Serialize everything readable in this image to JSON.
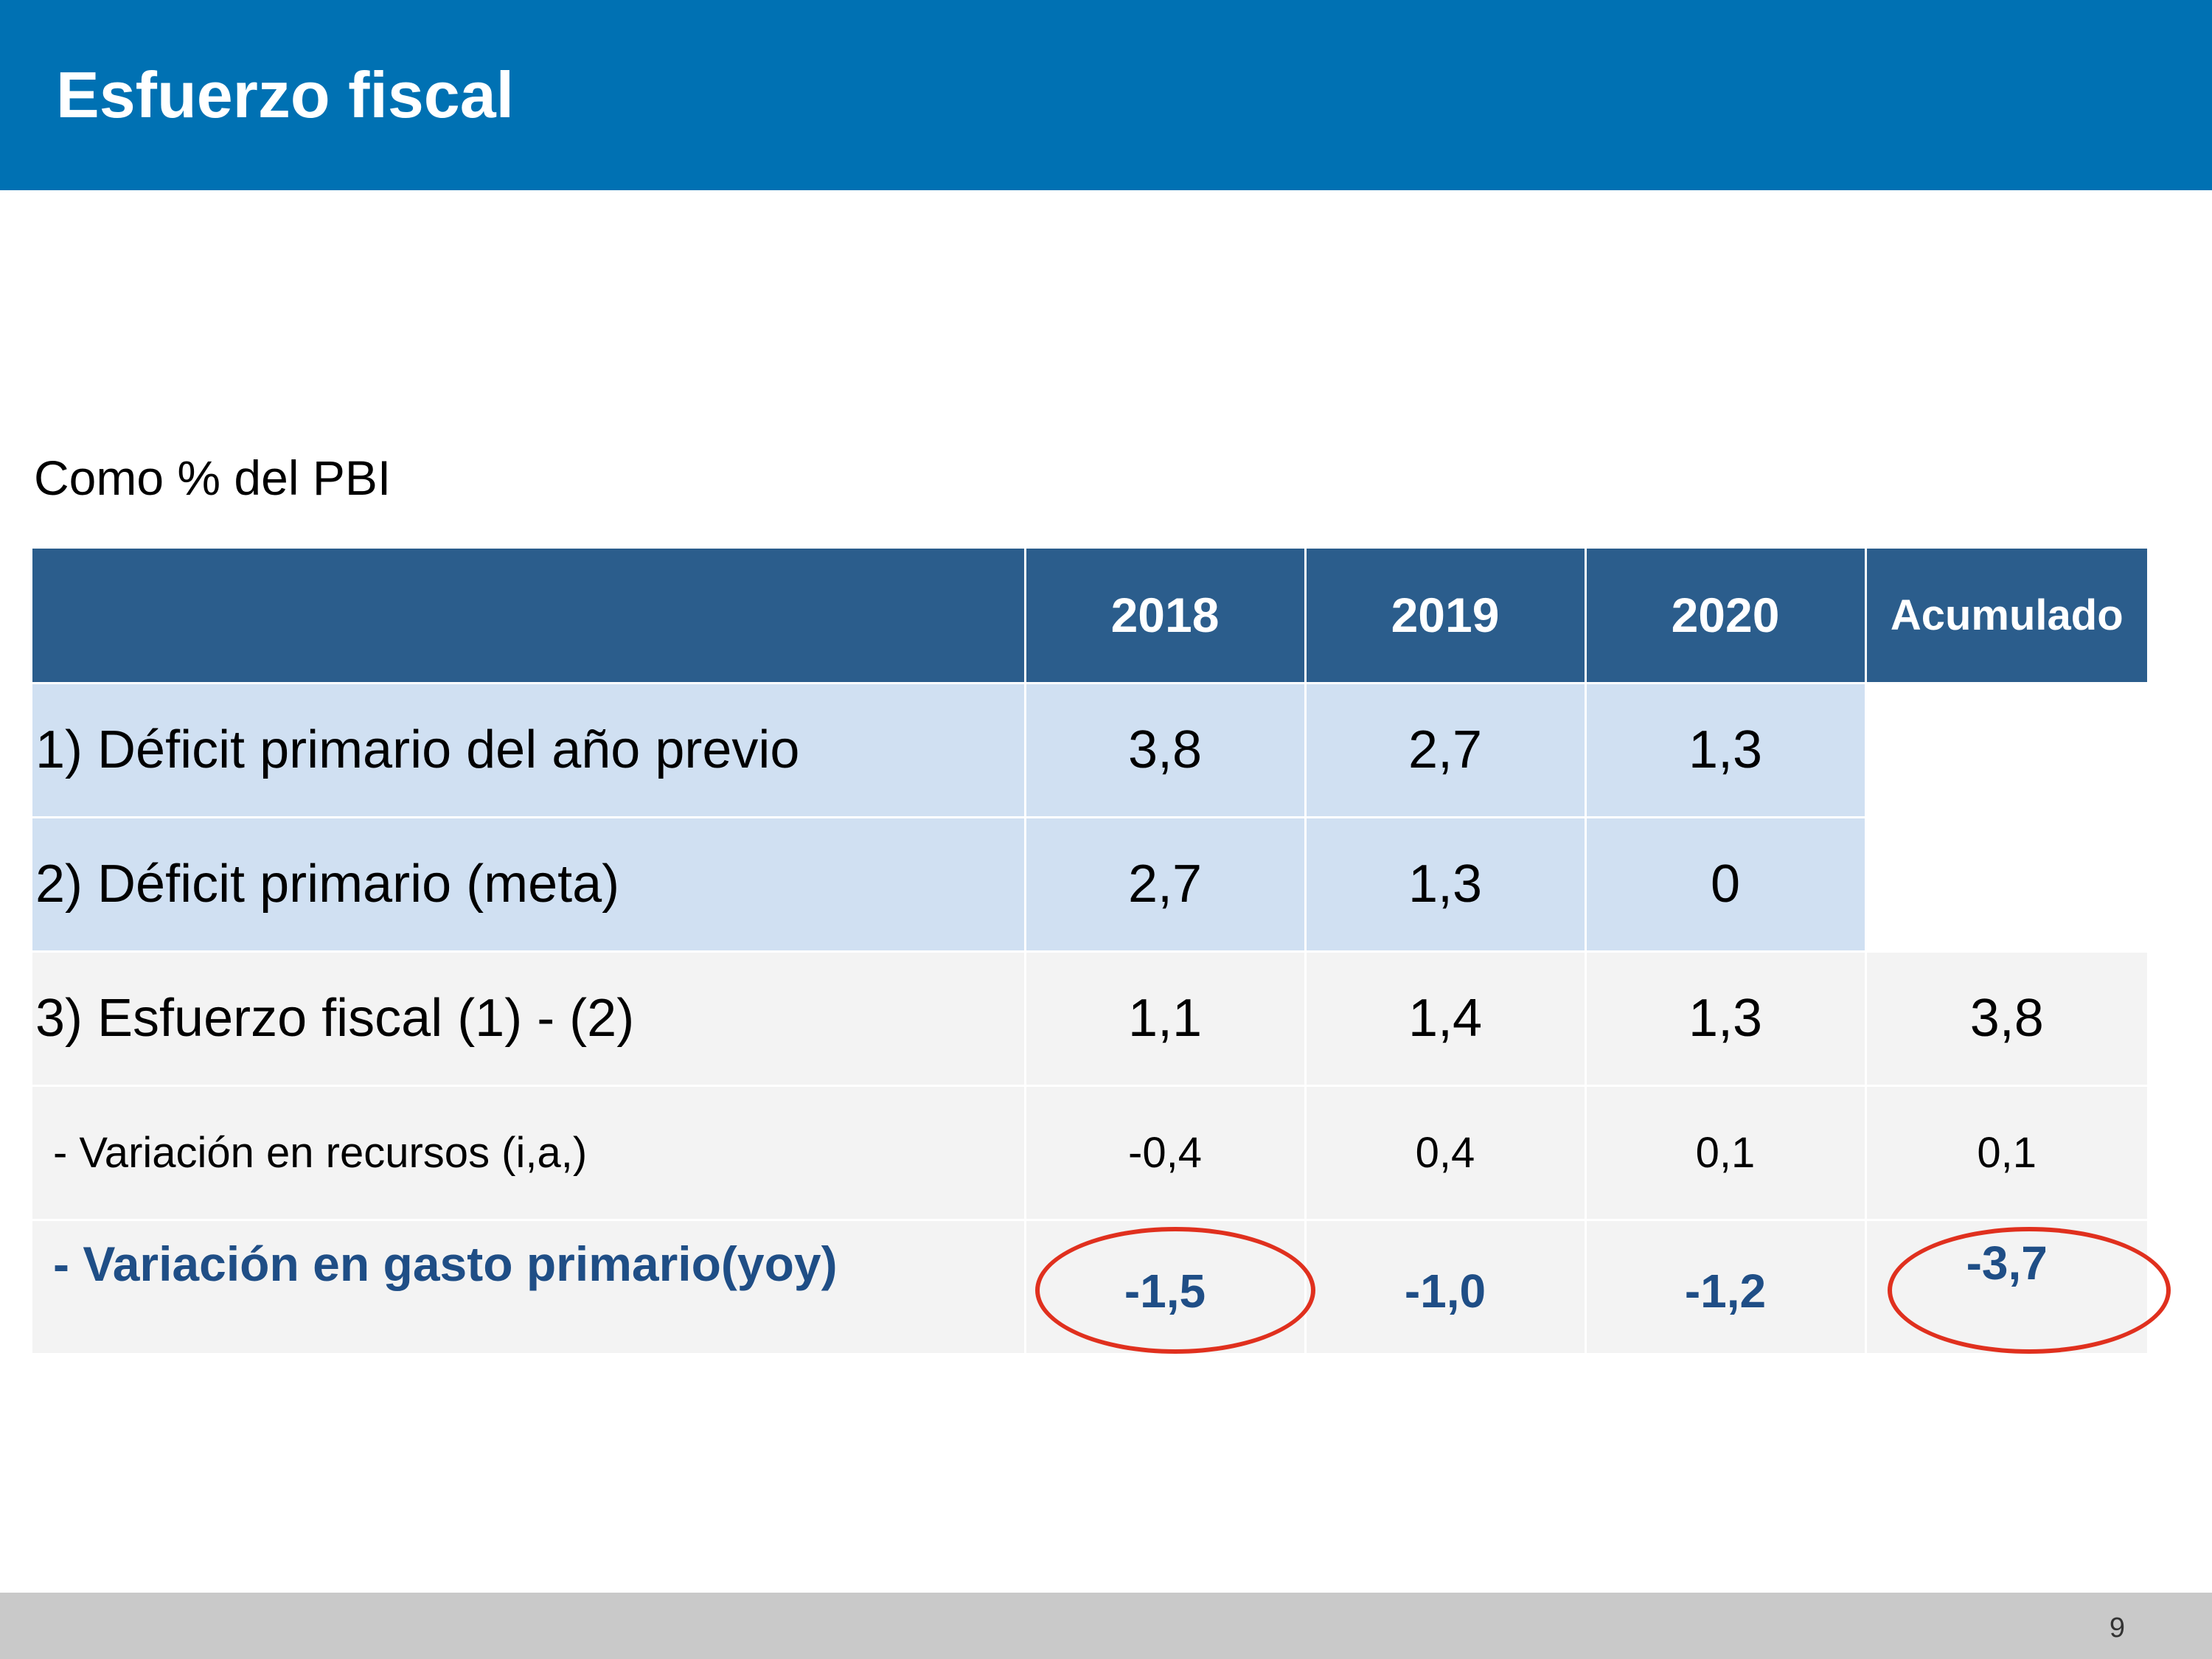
{
  "slide": {
    "title": "Esfuerzo fiscal",
    "subtitle": "Como % del PBI",
    "page_number": "9"
  },
  "colors": {
    "header": "#0071b3",
    "table_header": "#2b5d8c",
    "row_highlight": "#d0e0f2",
    "row_neutral": "#f3f3f3",
    "emphasis_text": "#1f4e86",
    "circle_annotation": "#e0301e",
    "footer": "#c9c9c9"
  },
  "table": {
    "headers": [
      "",
      "2018",
      "2019",
      "2020",
      "Acumulado"
    ],
    "rows": [
      {
        "label": "1) Déficit primario del año previo",
        "values": [
          "3,8",
          "2,7",
          "1,3",
          ""
        ]
      },
      {
        "label": "2) Déficit primario (meta)",
        "values": [
          "2,7",
          "1,3",
          "0",
          ""
        ]
      },
      {
        "label": "3) Esfuerzo fiscal (1) - (2)",
        "values": [
          "1,1",
          "1,4",
          "1,3",
          "3,8"
        ]
      },
      {
        "label": " - Variación en recursos (i,a,)",
        "values": [
          "-0,4",
          "0,4",
          "0,1",
          "0,1"
        ]
      },
      {
        "label": " - Variación en gasto primario(yoy)",
        "values": [
          "-1,5",
          "-1,0",
          "-1,2",
          "-3,7"
        ]
      }
    ]
  },
  "annotations": {
    "circled_cells": [
      "-1,5",
      "-3,7"
    ]
  }
}
